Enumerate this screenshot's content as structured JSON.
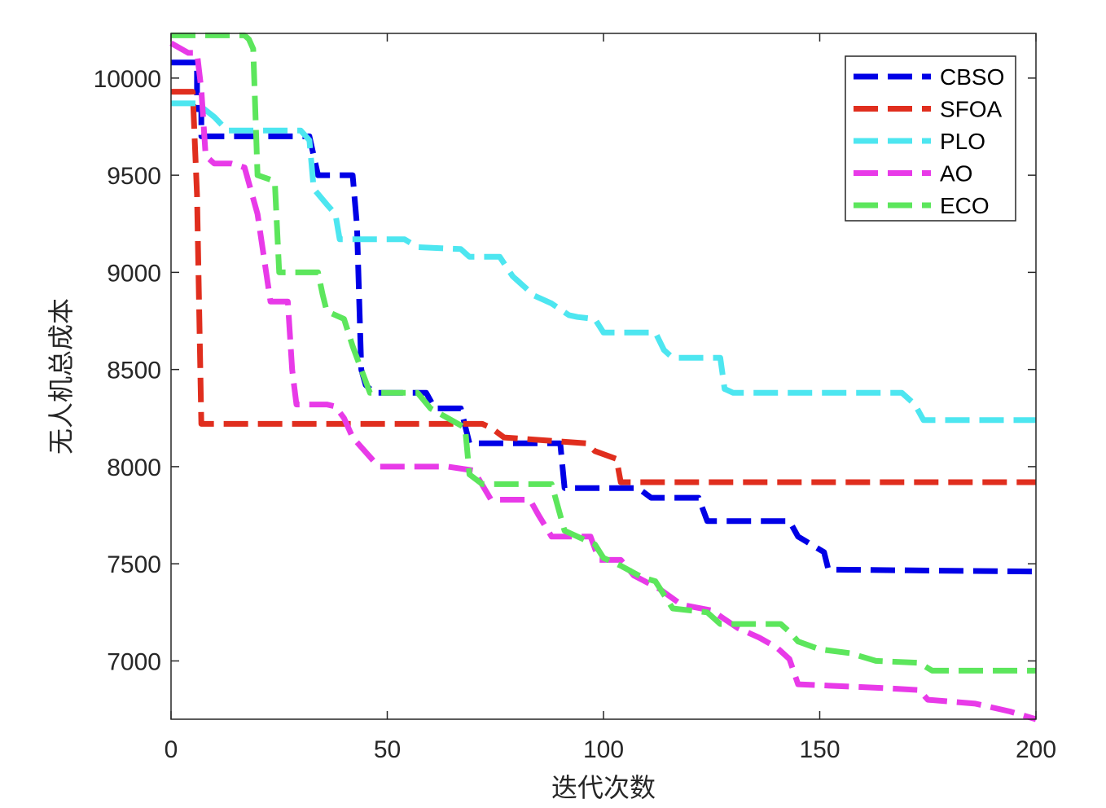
{
  "chart_data": {
    "type": "line",
    "title": "",
    "xlabel": "迭代次数",
    "ylabel": "无人机总成本",
    "xlim": [
      0,
      200
    ],
    "ylim": [
      6700,
      10230
    ],
    "xticks": [
      0,
      50,
      100,
      150,
      200
    ],
    "xtick_labels": [
      "0",
      "50",
      "100",
      "150",
      "200"
    ],
    "yticks": [
      7000,
      7500,
      8000,
      8500,
      9000,
      9500,
      10000
    ],
    "ytick_labels": [
      "7000",
      "7500",
      "8000",
      "8500",
      "9000",
      "9500",
      "10000"
    ],
    "grid": false,
    "legend_position": "top-right",
    "series": [
      {
        "name": "CBSO",
        "color": "#0000e6",
        "points": [
          [
            0,
            10080
          ],
          [
            6,
            10080
          ],
          [
            6,
            9840
          ],
          [
            7,
            9840
          ],
          [
            7,
            9700
          ],
          [
            32,
            9700
          ],
          [
            34,
            9500
          ],
          [
            42,
            9500
          ],
          [
            43,
            9240
          ],
          [
            44,
            8500
          ],
          [
            45,
            8420
          ],
          [
            47,
            8380
          ],
          [
            59,
            8380
          ],
          [
            61,
            8300
          ],
          [
            67,
            8300
          ],
          [
            69,
            8120
          ],
          [
            90,
            8120
          ],
          [
            91,
            7890
          ],
          [
            108,
            7890
          ],
          [
            111,
            7840
          ],
          [
            122,
            7840
          ],
          [
            124,
            7720
          ],
          [
            143,
            7720
          ],
          [
            145,
            7640
          ],
          [
            151,
            7560
          ],
          [
            152,
            7470
          ],
          [
            200,
            7460
          ]
        ]
      },
      {
        "name": "SFOA",
        "color": "#e02e1e",
        "points": [
          [
            0,
            9930
          ],
          [
            5,
            9930
          ],
          [
            6,
            9400
          ],
          [
            7,
            8220
          ],
          [
            72,
            8220
          ],
          [
            74,
            8200
          ],
          [
            77,
            8150
          ],
          [
            96,
            8120
          ],
          [
            98,
            8080
          ],
          [
            103,
            8040
          ],
          [
            104,
            7920
          ],
          [
            200,
            7920
          ]
        ]
      },
      {
        "name": "PLO",
        "color": "#4de6f0",
        "points": [
          [
            0,
            9870
          ],
          [
            6,
            9870
          ],
          [
            10,
            9800
          ],
          [
            13,
            9730
          ],
          [
            30,
            9730
          ],
          [
            32,
            9680
          ],
          [
            33,
            9430
          ],
          [
            36,
            9350
          ],
          [
            38,
            9300
          ],
          [
            39,
            9170
          ],
          [
            54,
            9170
          ],
          [
            57,
            9130
          ],
          [
            67,
            9120
          ],
          [
            69,
            9080
          ],
          [
            76,
            9080
          ],
          [
            79,
            8980
          ],
          [
            84,
            8880
          ],
          [
            88,
            8840
          ],
          [
            92,
            8780
          ],
          [
            94,
            8770
          ],
          [
            98,
            8760
          ],
          [
            100,
            8690
          ],
          [
            112,
            8690
          ],
          [
            114,
            8600
          ],
          [
            116,
            8560
          ],
          [
            127,
            8560
          ],
          [
            128,
            8400
          ],
          [
            130,
            8380
          ],
          [
            169,
            8380
          ],
          [
            172,
            8320
          ],
          [
            174,
            8240
          ],
          [
            200,
            8240
          ]
        ]
      },
      {
        "name": "AO",
        "color": "#e83ae8",
        "points": [
          [
            0,
            10180
          ],
          [
            4,
            10130
          ],
          [
            6,
            10130
          ],
          [
            7,
            9940
          ],
          [
            8,
            9600
          ],
          [
            10,
            9560
          ],
          [
            14,
            9560
          ],
          [
            17,
            9540
          ],
          [
            20,
            9300
          ],
          [
            22,
            9000
          ],
          [
            23,
            8850
          ],
          [
            27,
            8850
          ],
          [
            28,
            8500
          ],
          [
            29,
            8320
          ],
          [
            36,
            8320
          ],
          [
            38,
            8310
          ],
          [
            40,
            8250
          ],
          [
            42,
            8150
          ],
          [
            48,
            8000
          ],
          [
            64,
            8000
          ],
          [
            70,
            7980
          ],
          [
            74,
            7830
          ],
          [
            83,
            7830
          ],
          [
            85,
            7750
          ],
          [
            88,
            7640
          ],
          [
            97,
            7640
          ],
          [
            99,
            7520
          ],
          [
            104,
            7520
          ],
          [
            107,
            7440
          ],
          [
            113,
            7370
          ],
          [
            118,
            7290
          ],
          [
            125,
            7260
          ],
          [
            131,
            7170
          ],
          [
            136,
            7120
          ],
          [
            140,
            7070
          ],
          [
            143,
            7010
          ],
          [
            145,
            6880
          ],
          [
            165,
            6860
          ],
          [
            173,
            6850
          ],
          [
            175,
            6800
          ],
          [
            186,
            6780
          ],
          [
            194,
            6740
          ],
          [
            200,
            6700
          ]
        ]
      },
      {
        "name": "ECO",
        "color": "#5ce65c",
        "points": [
          [
            0,
            10220
          ],
          [
            17,
            10220
          ],
          [
            18,
            10200
          ],
          [
            19,
            10150
          ],
          [
            20,
            9500
          ],
          [
            24,
            9470
          ],
          [
            25,
            9000
          ],
          [
            34,
            9000
          ],
          [
            35,
            8890
          ],
          [
            36,
            8800
          ],
          [
            40,
            8760
          ],
          [
            42,
            8620
          ],
          [
            44,
            8500
          ],
          [
            46,
            8380
          ],
          [
            57,
            8380
          ],
          [
            60,
            8300
          ],
          [
            68,
            8200
          ],
          [
            69,
            7960
          ],
          [
            72,
            7910
          ],
          [
            88,
            7910
          ],
          [
            91,
            7670
          ],
          [
            98,
            7600
          ],
          [
            100,
            7530
          ],
          [
            104,
            7490
          ],
          [
            109,
            7430
          ],
          [
            112,
            7410
          ],
          [
            116,
            7270
          ],
          [
            124,
            7250
          ],
          [
            127,
            7190
          ],
          [
            141,
            7190
          ],
          [
            143,
            7150
          ],
          [
            145,
            7100
          ],
          [
            150,
            7060
          ],
          [
            157,
            7040
          ],
          [
            163,
            7000
          ],
          [
            173,
            6990
          ],
          [
            176,
            6950
          ],
          [
            200,
            6950
          ]
        ]
      }
    ]
  }
}
